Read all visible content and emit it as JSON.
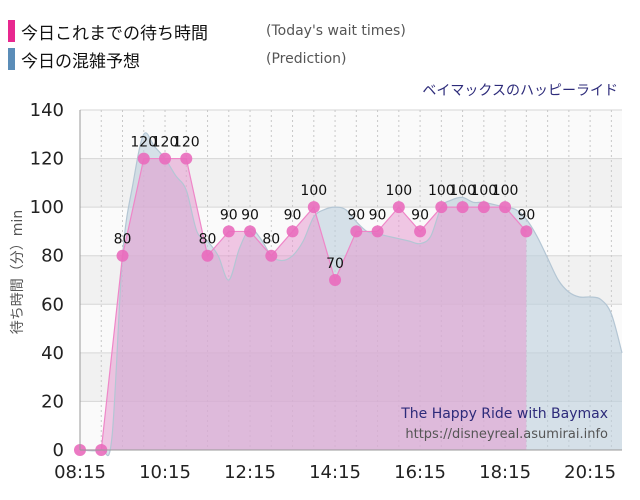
{
  "legend": {
    "actual": {
      "label": "今日これまでの待ち時間",
      "sub": "(Today's wait times)",
      "color": "#e8288f"
    },
    "predicted": {
      "label": "今日の混雑予想",
      "sub": "(Prediction)",
      "color": "#5b8db8"
    }
  },
  "ride_title": "ベイマックスのハッピーライド",
  "watermark": {
    "line1": "The Happy Ride with Baymax",
    "line2": "https://disneyreal.asumirai.info"
  },
  "chart_data": {
    "type": "area",
    "ylabel": "待ち時間（分）min",
    "xlabel": "",
    "ylim": [
      0,
      140
    ],
    "yticks": [
      0,
      20,
      40,
      60,
      80,
      100,
      120,
      140
    ],
    "xlim": [
      "08:15",
      "21:00"
    ],
    "xticks": [
      "08:15",
      "10:15",
      "12:15",
      "14:15",
      "16:15",
      "18:15",
      "20:15"
    ],
    "grid": true,
    "series": [
      {
        "name": "今日これまでの待ち時間",
        "color": "#e8288f",
        "data_labels": true,
        "points": [
          [
            "08:15",
            0
          ],
          [
            "08:45",
            0
          ],
          [
            "09:15",
            80
          ],
          [
            "09:45",
            120
          ],
          [
            "10:15",
            120
          ],
          [
            "10:45",
            120
          ],
          [
            "11:15",
            80
          ],
          [
            "11:45",
            90
          ],
          [
            "12:15",
            90
          ],
          [
            "12:45",
            80
          ],
          [
            "13:15",
            90
          ],
          [
            "13:45",
            100
          ],
          [
            "14:15",
            70
          ],
          [
            "14:45",
            90
          ],
          [
            "15:15",
            90
          ],
          [
            "15:45",
            100
          ],
          [
            "16:15",
            90
          ],
          [
            "16:45",
            100
          ],
          [
            "17:15",
            100
          ],
          [
            "17:45",
            100
          ],
          [
            "18:15",
            100
          ],
          [
            "18:45",
            90
          ]
        ]
      },
      {
        "name": "今日の混雑予想",
        "color": "#5b8db8",
        "data_labels": false,
        "points": [
          [
            "08:15",
            0
          ],
          [
            "08:45",
            0
          ],
          [
            "09:00",
            5
          ],
          [
            "09:15",
            80
          ],
          [
            "09:30",
            110
          ],
          [
            "09:45",
            130
          ],
          [
            "10:00",
            125
          ],
          [
            "10:15",
            120
          ],
          [
            "10:30",
            113
          ],
          [
            "10:45",
            107
          ],
          [
            "11:00",
            90
          ],
          [
            "11:15",
            86
          ],
          [
            "11:30",
            80
          ],
          [
            "11:45",
            70
          ],
          [
            "12:00",
            83
          ],
          [
            "12:15",
            91
          ],
          [
            "12:30",
            87
          ],
          [
            "12:45",
            80
          ],
          [
            "13:00",
            78
          ],
          [
            "13:15",
            80
          ],
          [
            "13:30",
            86
          ],
          [
            "13:45",
            96
          ],
          [
            "14:00",
            99
          ],
          [
            "14:15",
            100
          ],
          [
            "14:30",
            99
          ],
          [
            "14:45",
            94
          ],
          [
            "15:00",
            90
          ],
          [
            "15:15",
            89
          ],
          [
            "15:30",
            88
          ],
          [
            "15:45",
            87
          ],
          [
            "16:00",
            86
          ],
          [
            "16:15",
            85
          ],
          [
            "16:30",
            88
          ],
          [
            "16:45",
            100
          ],
          [
            "17:00",
            103
          ],
          [
            "17:15",
            104
          ],
          [
            "17:30",
            102
          ],
          [
            "17:45",
            102
          ],
          [
            "18:00",
            101
          ],
          [
            "18:15",
            100
          ],
          [
            "18:30",
            99
          ],
          [
            "18:45",
            95
          ],
          [
            "19:00",
            88
          ],
          [
            "19:15",
            79
          ],
          [
            "19:30",
            70
          ],
          [
            "19:45",
            65
          ],
          [
            "20:00",
            63
          ],
          [
            "20:15",
            63
          ],
          [
            "20:30",
            62
          ],
          [
            "20:45",
            56
          ],
          [
            "21:00",
            40
          ]
        ]
      }
    ]
  }
}
